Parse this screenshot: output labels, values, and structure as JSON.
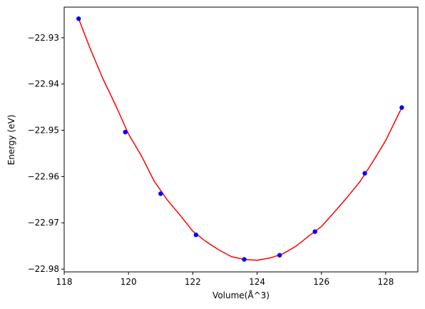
{
  "chart_data": {
    "type": "line",
    "title": "",
    "xlabel": "Volume(Å^3)",
    "ylabel": "Energy (eV)",
    "xlim": [
      118.0,
      129.0
    ],
    "ylim": [
      -22.9806,
      -22.9234
    ],
    "x_ticks": [
      118,
      120,
      122,
      124,
      126,
      128
    ],
    "x_tick_labels": [
      "118",
      "120",
      "122",
      "124",
      "126",
      "128"
    ],
    "y_ticks": [
      -22.93,
      -22.94,
      -22.95,
      -22.96,
      -22.97,
      -22.98
    ],
    "y_tick_labels": [
      "−22.93",
      "−22.94",
      "−22.95",
      "−22.96",
      "−22.97",
      "−22.98"
    ],
    "grid": false,
    "legend": false,
    "series": [
      {
        "kind": "scatter",
        "color": "#0000ff",
        "marker": "circle",
        "x": [
          118.45,
          119.9,
          121.0,
          122.1,
          123.6,
          124.7,
          125.8,
          127.35,
          128.5
        ],
        "y": [
          -22.9259,
          -22.9504,
          -22.9637,
          -22.9726,
          -22.9779,
          -22.977,
          -22.9719,
          -22.9593,
          -22.9451
        ]
      },
      {
        "kind": "line",
        "color": "#ff0000",
        "x": [
          118.45,
          118.8,
          119.2,
          119.6,
          120.0,
          120.4,
          120.8,
          121.2,
          121.6,
          122.0,
          122.4,
          122.8,
          123.2,
          123.6,
          124.0,
          124.4,
          124.8,
          125.2,
          125.6,
          126.0,
          126.4,
          126.8,
          127.2,
          127.6,
          128.0,
          128.5
        ],
        "y": [
          -22.9259,
          -22.9322,
          -22.9388,
          -22.9446,
          -22.9508,
          -22.9555,
          -22.961,
          -22.965,
          -22.9683,
          -22.9718,
          -22.974,
          -22.9758,
          -22.9773,
          -22.9779,
          -22.9781,
          -22.9776,
          -22.9767,
          -22.9751,
          -22.9729,
          -22.9708,
          -22.9677,
          -22.9645,
          -22.9611,
          -22.9568,
          -22.9522,
          -22.9451
        ]
      }
    ]
  }
}
